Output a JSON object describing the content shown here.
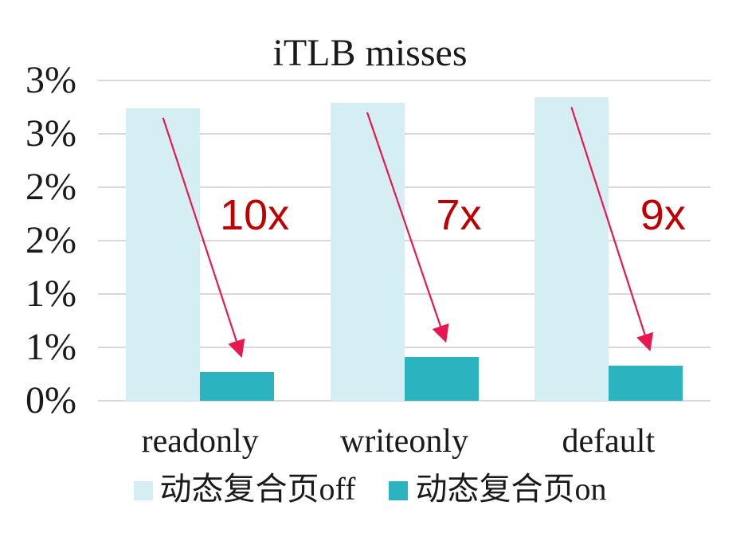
{
  "chart_data": {
    "type": "bar",
    "title": "iTLB misses",
    "categories": [
      "readonly",
      "writeonly",
      "default"
    ],
    "series": [
      {
        "name": "动态复合页off",
        "color": "#D5EEF3",
        "values": [
          2.74,
          2.79,
          2.84
        ]
      },
      {
        "name": "动态复合页on",
        "color": "#2BB3C0",
        "values": [
          0.27,
          0.41,
          0.33
        ]
      }
    ],
    "value_unit": "%",
    "y_axis": {
      "min": 0,
      "max": 3,
      "tick_step": 0.5,
      "ticks": [
        {
          "value": 3.0,
          "label": "3%"
        },
        {
          "value": 2.5,
          "label": "3%"
        },
        {
          "value": 2.0,
          "label": "2%"
        },
        {
          "value": 1.5,
          "label": "2%"
        },
        {
          "value": 1.0,
          "label": "1%"
        },
        {
          "value": 0.5,
          "label": "1%"
        },
        {
          "value": 0.0,
          "label": "0%"
        }
      ]
    },
    "annotations": [
      {
        "category": "readonly",
        "label": "10x"
      },
      {
        "category": "writeonly",
        "label": "7x"
      },
      {
        "category": "default",
        "label": "9x"
      }
    ],
    "grid": true,
    "legend_position": "bottom",
    "colors": {
      "annotation_text": "#C00000",
      "arrow": "#E8174F",
      "gridline": "#D9D9D9",
      "text": "#1A1A1A",
      "background": "#FFFFFF"
    }
  }
}
